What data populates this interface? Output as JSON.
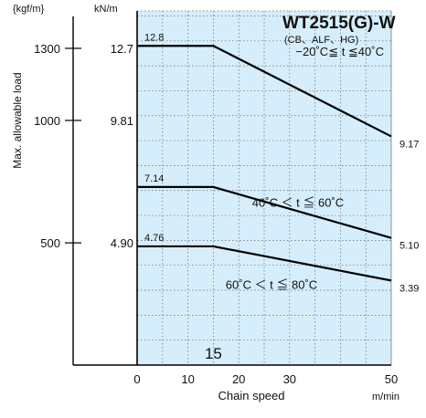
{
  "chart_data": {
    "type": "line",
    "title": "WT2515(G)-W",
    "subtitle": "(CB、ALF、HG)",
    "xlabel": "Chain speed",
    "x_unit": "m/min",
    "ylabel": "Max. allowable load",
    "y_unit_kgf": "{kgf/m}",
    "y_unit_kn": "kN/m",
    "xlim": [
      0,
      50
    ],
    "x_ticks": [
      0,
      10,
      20,
      30,
      50
    ],
    "x_tick_labels": [
      "0",
      "10",
      "20",
      "30",
      "50"
    ],
    "x_marker": {
      "value": 15,
      "label": "15"
    },
    "ylim_kn": [
      0,
      14.2
    ],
    "y_ticks_kgf": [
      {
        "kn": 12.7,
        "label": "1300"
      },
      {
        "kn": 9.81,
        "label": "1000"
      },
      {
        "kn": 4.9,
        "label": "500"
      }
    ],
    "y_ticks_kn": [
      {
        "kn": 12.7,
        "label": "12.7"
      },
      {
        "kn": 9.81,
        "label": "9.81"
      },
      {
        "kn": 4.9,
        "label": "4.90"
      }
    ],
    "grid": true,
    "series": [
      {
        "name": "−20˚C≦ t ≦40˚C",
        "start_label": "12.8",
        "end_label": "9.17",
        "x": [
          0,
          15,
          50
        ],
        "y": [
          12.8,
          12.8,
          9.17
        ]
      },
      {
        "name": "40˚C ＜ t ≦ 60˚C",
        "start_label": "7.14",
        "end_label": "5.10",
        "x": [
          0,
          15,
          50
        ],
        "y": [
          7.14,
          7.14,
          5.1
        ]
      },
      {
        "name": "60˚C ＜ t ≦ 80˚C",
        "start_label": "4.76",
        "end_label": "3.39",
        "x": [
          0,
          15,
          50
        ],
        "y": [
          4.76,
          4.76,
          3.39
        ]
      }
    ],
    "colors": {
      "plot_background": "#d6eefb",
      "grid": "#6a6a6a",
      "line": "#000000"
    }
  }
}
